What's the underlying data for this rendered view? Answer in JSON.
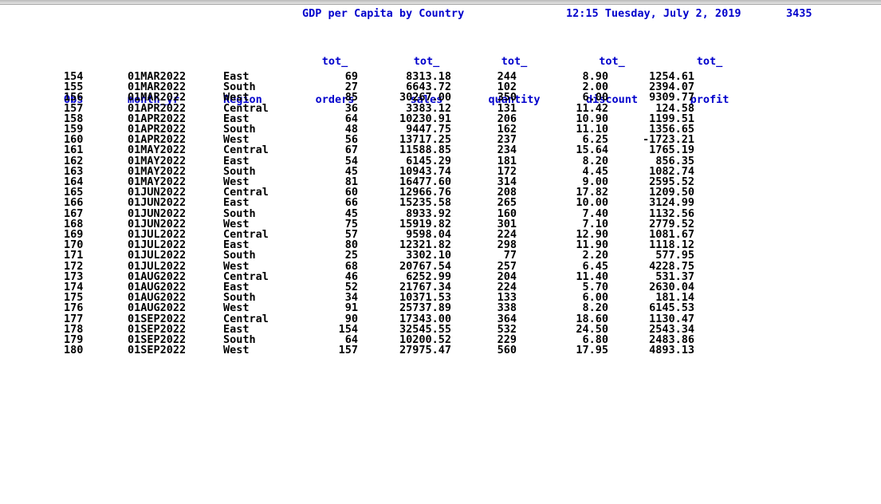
{
  "report": {
    "title": "GDP per Capita by Country",
    "datetime": "12:15 Tuesday, July 2, 2019",
    "page": "3435"
  },
  "columns": [
    {
      "key": "obs",
      "top": "",
      "bottom": "Obs"
    },
    {
      "key": "month_yr",
      "top": "",
      "bottom": "month_yr"
    },
    {
      "key": "region",
      "top": "",
      "bottom": "Region"
    },
    {
      "key": "tot_orders",
      "top": "tot_",
      "bottom": "orders"
    },
    {
      "key": "tot_sales",
      "top": "tot_",
      "bottom": "sales"
    },
    {
      "key": "tot_quantity",
      "top": "tot_",
      "bottom": "quantity"
    },
    {
      "key": "tot_discount",
      "top": "tot_",
      "bottom": "discount"
    },
    {
      "key": "tot_profit",
      "top": "tot_",
      "bottom": "profit"
    }
  ],
  "rows": [
    [
      "154",
      "01MAR2022",
      "East",
      "69",
      "8313.18",
      "244",
      "8.90",
      "1254.61"
    ],
    [
      "155",
      "01MAR2022",
      "South",
      "27",
      "6643.72",
      "102",
      "2.00",
      "2394.07"
    ],
    [
      "156",
      "01MAR2022",
      "West",
      "85",
      "30267.00",
      "350",
      "6.00",
      "9309.77"
    ],
    [
      "157",
      "01APR2022",
      "Central",
      "36",
      "3383.12",
      "131",
      "11.42",
      "124.58"
    ],
    [
      "158",
      "01APR2022",
      "East",
      "64",
      "10230.91",
      "206",
      "10.90",
      "1199.51"
    ],
    [
      "159",
      "01APR2022",
      "South",
      "48",
      "9447.75",
      "162",
      "11.10",
      "1356.65"
    ],
    [
      "160",
      "01APR2022",
      "West",
      "56",
      "13717.25",
      "237",
      "6.25",
      "-1723.21"
    ],
    [
      "161",
      "01MAY2022",
      "Central",
      "67",
      "11588.85",
      "234",
      "15.64",
      "1765.19"
    ],
    [
      "162",
      "01MAY2022",
      "East",
      "54",
      "6145.29",
      "181",
      "8.20",
      "856.35"
    ],
    [
      "163",
      "01MAY2022",
      "South",
      "45",
      "10943.74",
      "172",
      "4.45",
      "1082.74"
    ],
    [
      "164",
      "01MAY2022",
      "West",
      "81",
      "16477.60",
      "314",
      "9.00",
      "2595.52"
    ],
    [
      "165",
      "01JUN2022",
      "Central",
      "60",
      "12966.76",
      "208",
      "17.82",
      "1209.50"
    ],
    [
      "166",
      "01JUN2022",
      "East",
      "66",
      "15235.58",
      "265",
      "10.00",
      "3124.99"
    ],
    [
      "167",
      "01JUN2022",
      "South",
      "45",
      "8933.92",
      "160",
      "7.40",
      "1132.56"
    ],
    [
      "168",
      "01JUN2022",
      "West",
      "75",
      "15919.82",
      "301",
      "7.10",
      "2779.52"
    ],
    [
      "169",
      "01JUL2022",
      "Central",
      "57",
      "9598.04",
      "224",
      "12.90",
      "1081.67"
    ],
    [
      "170",
      "01JUL2022",
      "East",
      "80",
      "12321.82",
      "298",
      "11.90",
      "1118.12"
    ],
    [
      "171",
      "01JUL2022",
      "South",
      "25",
      "3302.10",
      "77",
      "2.20",
      "577.95"
    ],
    [
      "172",
      "01JUL2022",
      "West",
      "68",
      "20767.54",
      "257",
      "6.45",
      "4228.75"
    ],
    [
      "173",
      "01AUG2022",
      "Central",
      "46",
      "6252.99",
      "204",
      "11.40",
      "531.37"
    ],
    [
      "174",
      "01AUG2022",
      "East",
      "52",
      "21767.34",
      "224",
      "5.70",
      "2630.04"
    ],
    [
      "175",
      "01AUG2022",
      "South",
      "34",
      "10371.53",
      "133",
      "6.00",
      "181.14"
    ],
    [
      "176",
      "01AUG2022",
      "West",
      "91",
      "25737.89",
      "338",
      "8.20",
      "6145.53"
    ],
    [
      "177",
      "01SEP2022",
      "Central",
      "90",
      "17343.00",
      "364",
      "18.60",
      "1130.47"
    ],
    [
      "178",
      "01SEP2022",
      "East",
      "154",
      "32545.55",
      "532",
      "24.50",
      "2543.34"
    ],
    [
      "179",
      "01SEP2022",
      "South",
      "64",
      "10200.52",
      "229",
      "6.80",
      "2483.86"
    ],
    [
      "180",
      "01SEP2022",
      "West",
      "157",
      "27975.47",
      "560",
      "17.95",
      "4893.13"
    ]
  ],
  "colors": {
    "header": "#0000cc",
    "text": "#000000",
    "background": "#ffffff"
  }
}
